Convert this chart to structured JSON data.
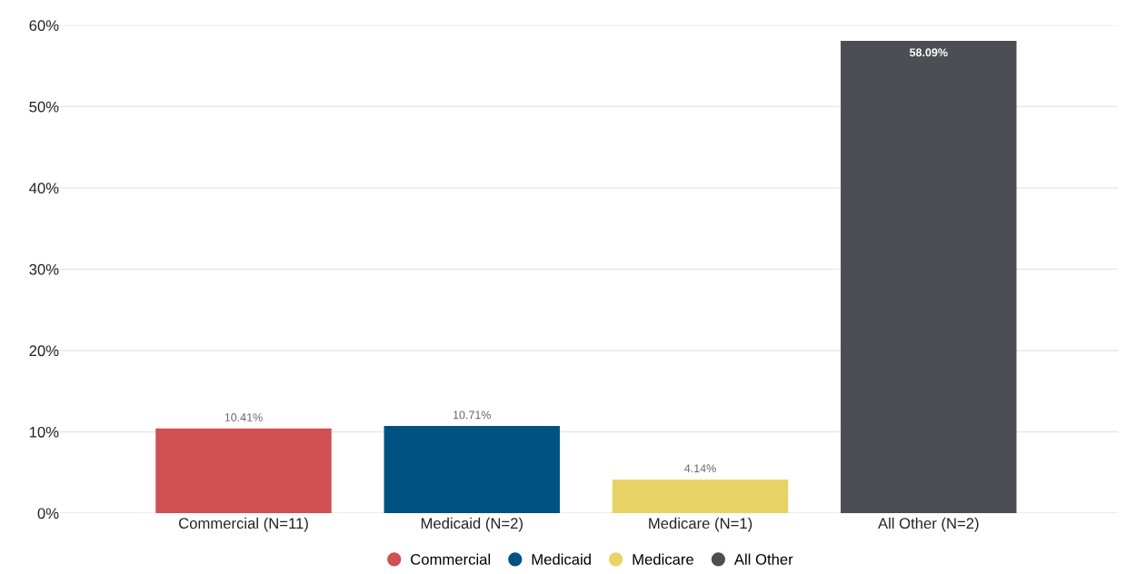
{
  "chart_data": {
    "type": "bar",
    "categories": [
      "Commercial (N=11)",
      "Medicaid (N=2)",
      "Medicare (N=1)",
      "All Other (N=2)"
    ],
    "series": [
      {
        "name": "Commercial",
        "color": "#d05053",
        "values": [
          10.41,
          null,
          null,
          null
        ],
        "value_labels": [
          "10.41%",
          null,
          null,
          null
        ]
      },
      {
        "name": "Medicaid",
        "color": "#005282",
        "values": [
          null,
          10.71,
          null,
          null
        ],
        "value_labels": [
          null,
          "10.71%",
          null,
          null
        ]
      },
      {
        "name": "Medicare",
        "color": "#e8d366",
        "values": [
          null,
          null,
          4.14,
          null
        ],
        "value_labels": [
          null,
          null,
          "4.14%",
          null
        ]
      },
      {
        "name": "All Other",
        "color": "#4d4e53",
        "values": [
          null,
          null,
          null,
          58.09
        ],
        "value_labels": [
          null,
          null,
          null,
          "58.09%"
        ]
      }
    ],
    "ylim": [
      0,
      60
    ],
    "yticks": [
      {
        "value": 0,
        "label": "0%"
      },
      {
        "value": 10,
        "label": "10%"
      },
      {
        "value": 20,
        "label": "20%"
      },
      {
        "value": 30,
        "label": "30%"
      },
      {
        "value": 40,
        "label": "40%"
      },
      {
        "value": 50,
        "label": "50%"
      },
      {
        "value": 60,
        "label": "60%"
      }
    ],
    "grid": "y",
    "legend": "bottom"
  }
}
